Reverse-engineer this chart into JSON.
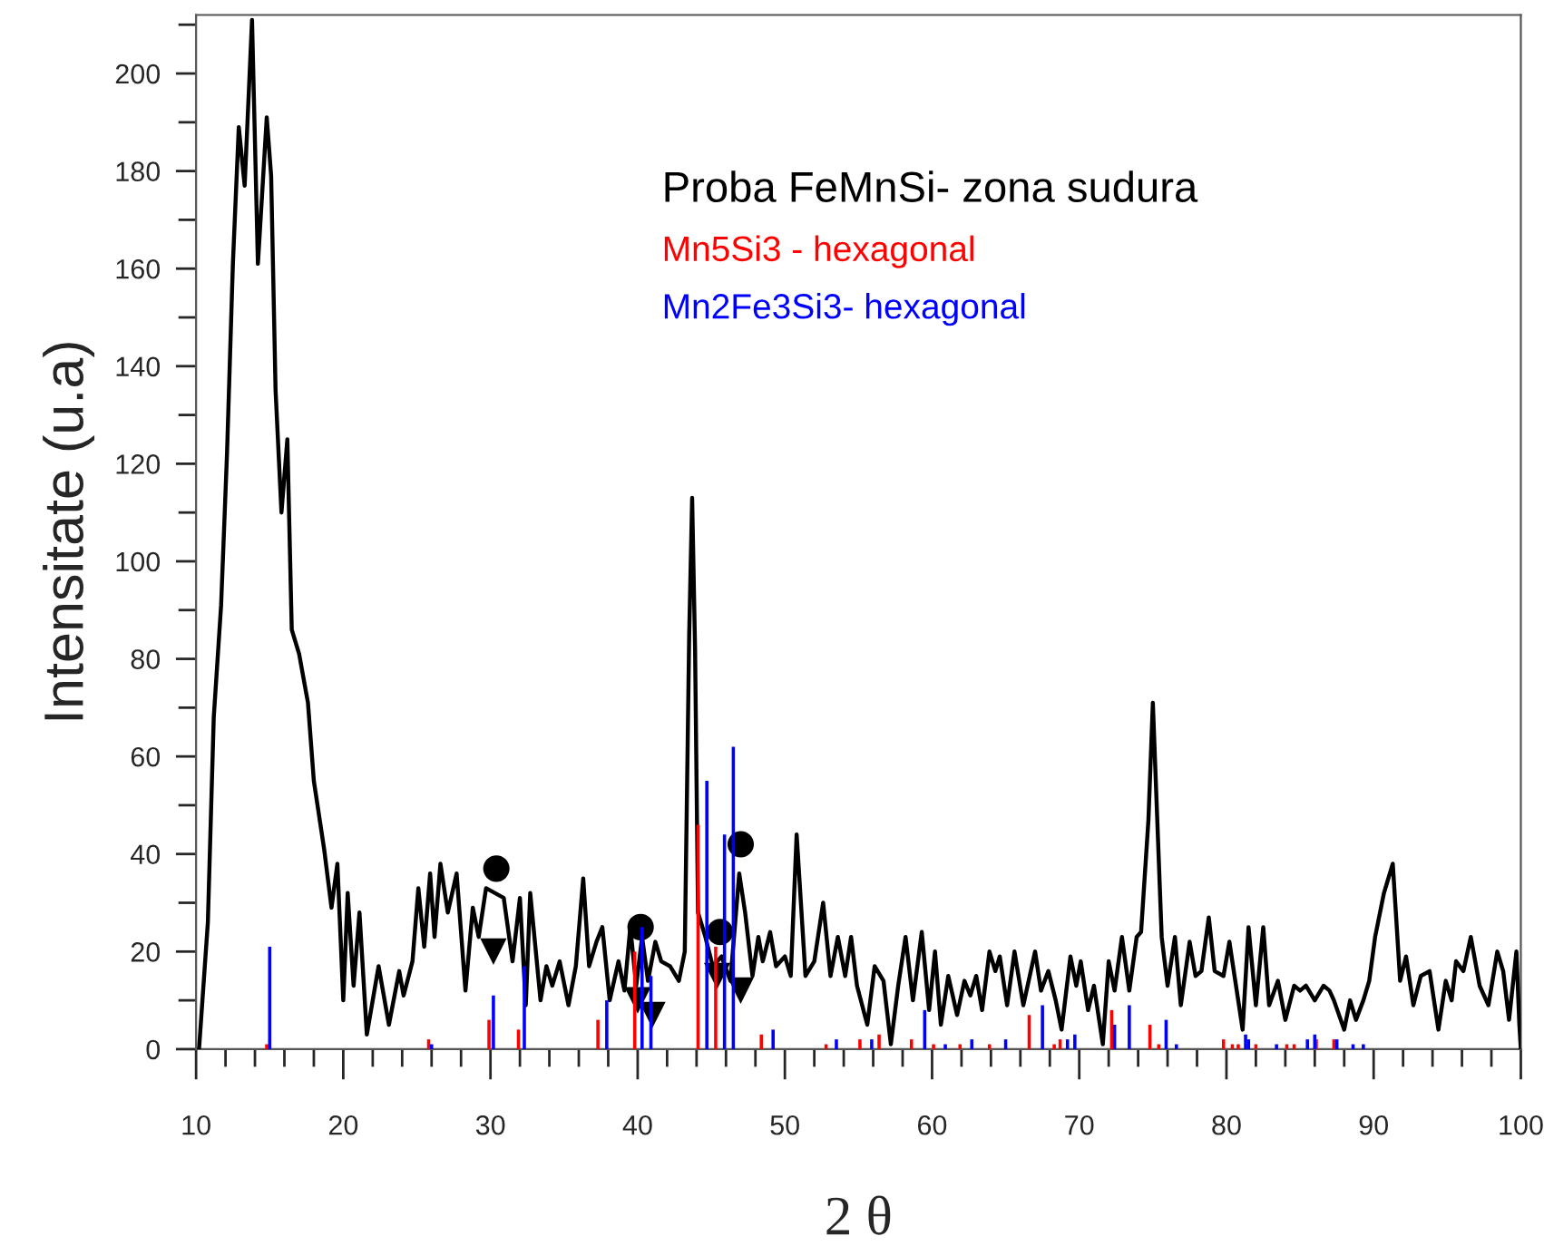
{
  "chart_data": {
    "type": "line",
    "xlabel": "2 θ",
    "ylabel": "Intensitate (u.a)",
    "legend_title": "Proba FeMnSi- zona sudura",
    "legend": "top right",
    "grid": false,
    "xlim": [
      10,
      100
    ],
    "ylim": [
      0,
      212
    ],
    "xticks": [
      10,
      {
        "value": 12,
        "label": null
      },
      {
        "value": 14,
        "label": null
      },
      {
        "value": 16,
        "label": null
      },
      {
        "value": 18,
        "label": null
      },
      20,
      {
        "value": 22,
        "label": null
      },
      {
        "value": 24,
        "label": null
      },
      {
        "value": 26,
        "label": null
      },
      {
        "value": 28,
        "label": null
      },
      30,
      {
        "value": 32,
        "label": null
      },
      {
        "value": 34,
        "label": null
      },
      {
        "value": 36,
        "label": null
      },
      {
        "value": 38,
        "label": null
      },
      40,
      {
        "value": 42,
        "label": null
      },
      {
        "value": 44,
        "label": null
      },
      {
        "value": 46,
        "label": null
      },
      {
        "value": 48,
        "label": null
      },
      50,
      {
        "value": 52,
        "label": null
      },
      {
        "value": 54,
        "label": null
      },
      {
        "value": 56,
        "label": null
      },
      {
        "value": 58,
        "label": null
      },
      60,
      {
        "value": 62,
        "label": null
      },
      {
        "value": 64,
        "label": null
      },
      {
        "value": 66,
        "label": null
      },
      {
        "value": 68,
        "label": null
      },
      70,
      {
        "value": 72,
        "label": null
      },
      {
        "value": 74,
        "label": null
      },
      {
        "value": 76,
        "label": null
      },
      {
        "value": 78,
        "label": null
      },
      80,
      {
        "value": 82,
        "label": null
      },
      {
        "value": 84,
        "label": null
      },
      {
        "value": 86,
        "label": null
      },
      {
        "value": 88,
        "label": null
      },
      90,
      {
        "value": 92,
        "label": null
      },
      {
        "value": 94,
        "label": null
      },
      {
        "value": 96,
        "label": null
      },
      {
        "value": 98,
        "label": null
      },
      100
    ],
    "yticks": [
      0,
      {
        "value": 10,
        "label": null
      },
      20,
      {
        "value": 30,
        "label": null
      },
      40,
      {
        "value": 50,
        "label": null
      },
      60,
      {
        "value": 70,
        "label": null
      },
      80,
      {
        "value": 90,
        "label": null
      },
      100,
      {
        "value": 110,
        "label": null
      },
      120,
      {
        "value": 130,
        "label": null
      },
      140,
      {
        "value": 150,
        "label": null
      },
      160,
      {
        "value": 170,
        "label": null
      },
      180,
      {
        "value": 190,
        "label": null
      },
      200,
      {
        "value": 210,
        "label": null
      }
    ],
    "series": [
      {
        "color": "#000000",
        "line_style": "solid",
        "marker": "none",
        "x": [
          10.2,
          10.8,
          11.2,
          11.7,
          12.1,
          12.5,
          12.9,
          13.3,
          13.8,
          14.2,
          14.8,
          15.1,
          15.4,
          15.8,
          16.2,
          16.5,
          17.0,
          17.6,
          18.0,
          18.7,
          19.2,
          19.6,
          20.0,
          20.3,
          20.7,
          21.1,
          21.6,
          22.4,
          23.1,
          23.8,
          24.1,
          24.7,
          25.1,
          25.5,
          25.9,
          26.2,
          26.6,
          27.1,
          27.7,
          28.3,
          28.8,
          29.2,
          29.7,
          30.9,
          31.5,
          32.0,
          32.4,
          32.7,
          33.4,
          33.8,
          34.2,
          34.7,
          35.3,
          35.8,
          36.3,
          36.7,
          37.2,
          37.6,
          38.1,
          38.7,
          39.1,
          39.5,
          39.9,
          40.3,
          40.7,
          41.2,
          41.6,
          42.2,
          42.8,
          43.2,
          43.5,
          43.7,
          43.9,
          44.1,
          44.6,
          45.1,
          45.7,
          46.3,
          46.9,
          47.3,
          47.8,
          48.2,
          48.5,
          49.0,
          49.4,
          50.0,
          50.4,
          50.8,
          51.4,
          52.0,
          52.6,
          53.1,
          53.6,
          54.1,
          54.5,
          54.9,
          55.6,
          56.1,
          56.7,
          57.2,
          57.7,
          58.2,
          58.7,
          59.3,
          59.8,
          60.2,
          60.6,
          61.1,
          61.7,
          62.2,
          62.6,
          63.0,
          63.4,
          63.9,
          64.3,
          64.6,
          65.1,
          65.6,
          66.2,
          67.0,
          67.4,
          67.9,
          68.4,
          68.8,
          69.4,
          69.8,
          70.1,
          70.6,
          71.0,
          71.6,
          72.0,
          72.4,
          72.9,
          73.4,
          73.9,
          74.2,
          74.7,
          75.0,
          75.3,
          75.6,
          76.0,
          76.5,
          76.9,
          77.5,
          77.9,
          78.3,
          78.8,
          79.2,
          79.8,
          80.2,
          80.6,
          81.1,
          81.5,
          82.0,
          82.5,
          82.9,
          83.5,
          84.0,
          84.6,
          85.0,
          85.4,
          86.0,
          86.6,
          87.0,
          87.3,
          88.0,
          88.4,
          88.8,
          89.3,
          89.7,
          90.1,
          90.7,
          91.3,
          91.8,
          92.2,
          92.7,
          93.2,
          93.8,
          94.4,
          94.9,
          95.3,
          95.6,
          96.1,
          96.6,
          97.2,
          97.8,
          98.4,
          98.8,
          99.2,
          99.7,
          99.9,
          100.0
        ],
        "values": [
          0,
          26,
          68,
          91,
          122,
          161,
          189,
          177,
          211,
          161,
          191,
          179,
          135,
          110,
          125,
          86,
          81,
          71,
          55,
          41,
          29,
          38,
          10,
          32,
          13,
          28,
          3,
          17,
          5,
          16,
          11,
          18,
          33,
          21,
          36,
          23,
          38,
          28,
          36,
          12,
          29,
          23,
          33,
          31,
          18,
          31,
          9,
          32,
          10,
          17,
          13,
          18,
          9,
          17,
          35,
          17,
          22,
          25,
          10,
          18,
          12,
          25,
          13,
          23,
          14,
          22,
          18,
          17,
          14,
          20,
          85,
          113,
          82,
          28,
          23,
          17,
          19,
          14,
          36,
          28,
          15,
          23,
          18,
          24,
          17,
          19,
          15,
          44,
          15,
          18,
          30,
          15,
          23,
          15,
          23,
          13,
          5,
          17,
          14,
          1,
          13,
          23,
          10,
          24,
          8,
          20,
          5,
          15,
          7,
          14,
          11,
          15,
          8,
          20,
          16,
          19,
          9,
          20,
          9,
          20,
          12,
          16,
          10,
          4,
          19,
          13,
          18,
          8,
          13,
          1,
          18,
          12,
          23,
          12,
          23,
          24,
          47,
          71,
          47,
          23,
          13,
          23,
          9,
          22,
          15,
          16,
          27,
          16,
          15,
          22,
          14,
          4,
          25,
          9,
          25,
          9,
          14,
          6,
          13,
          12,
          13,
          10,
          13,
          12,
          10,
          4,
          10,
          6,
          10,
          14,
          23,
          32,
          38,
          14,
          19,
          9,
          15,
          16,
          4,
          14,
          10,
          18,
          16,
          23,
          13,
          9,
          20,
          16,
          6,
          20,
          5,
          0
        ]
      },
      {
        "type": "bar",
        "name": "Mn5Si3 - hexagonal",
        "color": "#ff0000",
        "x": [
          14.8,
          25.8,
          29.9,
          31.9,
          37.3,
          39.8,
          44.1,
          45.3,
          48.4,
          52.8,
          55.1,
          56.4,
          58.6,
          60.1,
          61.9,
          63.9,
          66.6,
          68.3,
          68.7,
          72.2,
          74.8,
          75.4,
          79.8,
          80.4,
          80.8,
          82.0,
          84.1,
          84.6,
          86.1,
          87.3
        ],
        "values": [
          1,
          2,
          6,
          4,
          6,
          20,
          46,
          21,
          3,
          1,
          2,
          3,
          2,
          1,
          1,
          1,
          7,
          1,
          2,
          8,
          5,
          1,
          2,
          1,
          1,
          1,
          1,
          1,
          2,
          2
        ]
      },
      {
        "type": "bar",
        "name": "Mn2Fe3Si3- hexagonal",
        "color": "#0000ff",
        "x": [
          15.0,
          26.0,
          30.2,
          32.3,
          37.9,
          40.3,
          40.9,
          44.7,
          45.9,
          46.5,
          49.2,
          53.5,
          55.9,
          59.5,
          60.9,
          62.7,
          65.0,
          67.5,
          69.2,
          69.7,
          72.4,
          73.4,
          75.9,
          76.6,
          81.3,
          81.5,
          83.4,
          85.5,
          86.0,
          87.5,
          88.6,
          89.3
        ],
        "values": [
          21,
          1,
          11,
          17,
          10,
          25,
          15,
          55,
          44,
          62,
          4,
          2,
          2,
          8,
          1,
          2,
          2,
          9,
          2,
          3,
          5,
          9,
          6,
          1,
          3,
          2,
          1,
          2,
          3,
          2,
          1,
          1
        ]
      },
      {
        "type": "scatter",
        "color": "#000000",
        "marker": "circle",
        "x": [
          30.4,
          40.2,
          45.6,
          47.0
        ],
        "values": [
          37,
          25,
          24,
          42
        ]
      },
      {
        "type": "scatter",
        "color": "#000000",
        "marker": "triangle",
        "x": [
          30.2,
          40.0,
          41.0,
          45.4,
          47.0
        ],
        "values": [
          20,
          10,
          7,
          15,
          12
        ]
      }
    ]
  }
}
